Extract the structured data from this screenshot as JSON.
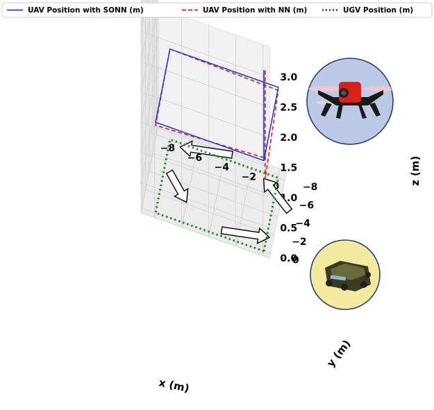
{
  "chart_data": {
    "type": "line",
    "projection": "3d",
    "xlabel": "x (m)",
    "ylabel": "y (m)",
    "zlabel": "z (m)",
    "xlim": [
      -9,
      0.5
    ],
    "ylim": [
      -9,
      0.5
    ],
    "zlim": [
      0,
      3.2
    ],
    "x_ticks": [
      "−8",
      "−6",
      "−4",
      "−2",
      "0"
    ],
    "y_ticks": [
      "0",
      "−2",
      "−4",
      "−6",
      "−8"
    ],
    "z_ticks": [
      "0.0",
      "0.5",
      "1.0",
      "1.5",
      "2.0",
      "2.5",
      "3.0"
    ],
    "grid": true,
    "legend_position": "top",
    "series": [
      {
        "name": "UAV Position with SONN (m)",
        "color": "#1f3fd6",
        "style": "solid",
        "points": [
          [
            0,
            0,
            3.0
          ],
          [
            0,
            0,
            1.5
          ],
          [
            0,
            -8,
            1.5
          ],
          [
            -8,
            -8,
            1.5
          ],
          [
            -8,
            0,
            1.5
          ],
          [
            0,
            0,
            1.5
          ]
        ]
      },
      {
        "name": "UAV Position with NN (m)",
        "color": "#e8141e",
        "style": "dashed",
        "points": [
          [
            0.1,
            0,
            3.0
          ],
          [
            0.1,
            0,
            1.2
          ],
          [
            0,
            -8,
            1.45
          ],
          [
            -8,
            -8,
            1.5
          ],
          [
            -8,
            0,
            1.45
          ],
          [
            0,
            0,
            1.55
          ]
        ]
      },
      {
        "name": "UGV Position (m)",
        "color": "#1a8a1a",
        "style": "dotted",
        "points": [
          [
            0,
            0,
            0
          ],
          [
            0,
            -8,
            0
          ],
          [
            -8,
            -8,
            0
          ],
          [
            -8,
            0,
            0
          ],
          [
            0,
            0,
            0
          ]
        ]
      }
    ]
  },
  "colors": {
    "sonn": "#1f3fd6",
    "nn": "#e8141e",
    "ugv": "#1a8a1a",
    "drone_bubble": "#b9c9e6",
    "ugv_bubble": "#f3eaa0"
  },
  "icons": [
    "drone-photo",
    "ground-robot-photo",
    "direction-arrows"
  ]
}
